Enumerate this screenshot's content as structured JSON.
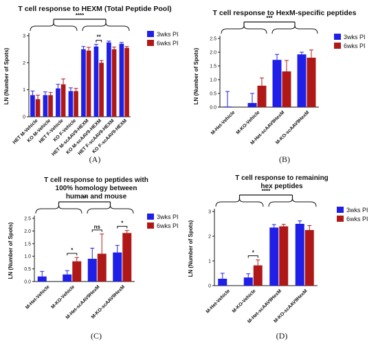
{
  "chart_data": [
    {
      "type": "bar",
      "panel_label": "(A)",
      "title_lines": [
        "T cell response to HEXM (Total Peptide Pool)"
      ],
      "ylabel": "LN (Number of Spots)",
      "xlabel": "",
      "ylim": [
        0,
        3
      ],
      "yticks": [
        "0",
        "1",
        "2",
        "3"
      ],
      "ytick_values": [
        0,
        1,
        2,
        3
      ],
      "legend_position": "right",
      "categories": [
        "HET M-Vehicle",
        "KO M-Vehicle",
        "HET F-Vehicle",
        "KO F-Vehicle",
        "HET M-scAAV9-HEXM",
        "KO M-scAAV9-HEXM",
        "HET F-scAAV9-HEXM",
        "KO F-scAAV9-HEXM"
      ],
      "series": [
        {
          "name": "3wks PI",
          "color": "#1f1fe8",
          "values": [
            0.8,
            0.8,
            1.05,
            0.95,
            2.5,
            2.6,
            2.75,
            2.7
          ],
          "errors": [
            0.15,
            0.12,
            0.15,
            0.12,
            0.1,
            0.08,
            0.05,
            0.05
          ]
        },
        {
          "name": "6wks PI",
          "color": "#b01818",
          "values": [
            0.65,
            0.8,
            1.2,
            0.95,
            2.45,
            2.0,
            2.5,
            2.55
          ],
          "errors": [
            0.15,
            0.1,
            0.2,
            0.1,
            0.12,
            0.08,
            0.08,
            0.05
          ]
        }
      ],
      "annotations": [
        {
          "text": "****",
          "group": "vehicle vs scAAV9-HEXM"
        },
        {
          "text": "**",
          "group": "KO M-scAAV9-HEXM 3wks vs 6wks"
        }
      ]
    },
    {
      "type": "bar",
      "panel_label": "(B)",
      "title_lines": [
        "T cell response to HexM-specific peptides"
      ],
      "ylabel": "LN (Number of Spots)",
      "xlabel": "",
      "ylim": [
        0,
        2.5
      ],
      "yticks": [
        "0.0",
        "0.5",
        "1.0",
        "1.5",
        "2.0",
        "2.5"
      ],
      "ytick_values": [
        0,
        0.5,
        1.0,
        1.5,
        2.0,
        2.5
      ],
      "legend_position": "right",
      "categories": [
        "M-Het-Vehicle",
        "M-KO-Vehicle",
        "M-Het-scAAV9HexM",
        "M-KO-scAAV9HexM"
      ],
      "series": [
        {
          "name": "3wks PI",
          "color": "#1f1fe8",
          "values": [
            0.02,
            0.15,
            1.72,
            1.92
          ],
          "errors": [
            0.55,
            0.35,
            0.2,
            0.08
          ]
        },
        {
          "name": "6wks PI",
          "color": "#b01818",
          "values": [
            0.0,
            0.78,
            1.3,
            1.8
          ],
          "errors": [
            0.0,
            0.28,
            0.4,
            0.28
          ]
        }
      ],
      "annotations": [
        {
          "text": "***",
          "group": "vehicle vs scAAV9HexM"
        }
      ]
    },
    {
      "type": "bar",
      "panel_label": "(C)",
      "title_lines": [
        "T cell response to peptides with",
        "100% homology between",
        "human and mouse"
      ],
      "ylabel": "LN (Number of Spots)",
      "xlabel": "",
      "ylim": [
        0,
        2.5
      ],
      "yticks": [
        "0.0",
        "0.5",
        "1.0",
        "1.5",
        "2.0",
        "2.5"
      ],
      "ytick_values": [
        0,
        0.5,
        1.0,
        1.5,
        2.0,
        2.5
      ],
      "legend_position": "right",
      "categories": [
        "M-Het-Vehicle",
        "M-KO-Vehicle",
        "M-Het-scAAV9HexM",
        "M-KO-scAAV9HexM"
      ],
      "series": [
        {
          "name": "3wks PI",
          "color": "#1f1fe8",
          "values": [
            0.2,
            0.28,
            0.9,
            1.15
          ],
          "errors": [
            0.2,
            0.15,
            0.42,
            0.28
          ]
        },
        {
          "name": "6wks PI",
          "color": "#b01818",
          "values": [
            0.0,
            0.8,
            1.1,
            1.92
          ],
          "errors": [
            0.0,
            0.15,
            0.78,
            0.1
          ]
        }
      ],
      "annotations": [
        {
          "text": "**",
          "group": "vehicle vs scAAV9HexM"
        },
        {
          "text": "*",
          "group": "M-KO-Vehicle 3wks vs 6wks"
        },
        {
          "text": "ns",
          "group": "M-Het-scAAV9HexM 3wks vs 6wks"
        },
        {
          "text": "*",
          "group": "M-KO-scAAV9HexM 3wks vs 6wks"
        }
      ]
    },
    {
      "type": "bar",
      "panel_label": "(D)",
      "title_lines": [
        "T cell response to remaining",
        "hex peptides"
      ],
      "ylabel": "LN (Number of Spots)",
      "xlabel": "",
      "ylim": [
        0,
        3
      ],
      "yticks": [
        "0",
        "1",
        "2",
        "3"
      ],
      "ytick_values": [
        0,
        1,
        2,
        3
      ],
      "legend_position": "right",
      "categories": [
        "M-Het-Vehicle",
        "M-KO-Vehicle",
        "M-Het-scAAV9HexM",
        "M-KO-scAAV9HexM"
      ],
      "series": [
        {
          "name": "3wks PI",
          "color": "#1f1fe8",
          "values": [
            0.28,
            0.33,
            2.35,
            2.5
          ],
          "errors": [
            0.22,
            0.15,
            0.12,
            0.12
          ]
        },
        {
          "name": "6wks PI",
          "color": "#b01818",
          "values": [
            0.0,
            0.82,
            2.4,
            2.25
          ],
          "errors": [
            0.0,
            0.22,
            0.08,
            0.18
          ]
        }
      ],
      "annotations": [
        {
          "text": "****",
          "group": "vehicle vs scAAV9HexM"
        },
        {
          "text": "*",
          "group": "M-KO-Vehicle 3wks vs 6wks"
        }
      ]
    }
  ]
}
